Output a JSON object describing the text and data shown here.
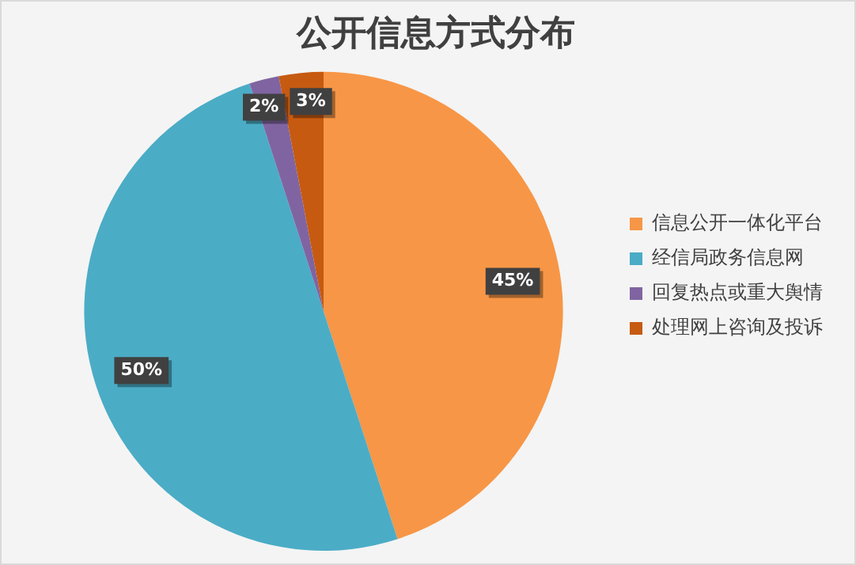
{
  "chart_data": {
    "type": "pie",
    "title": "公开信息方式分布",
    "categories": [
      "信息公开一体化平台",
      "经信局政务信息网",
      "回复热点或重大舆情",
      "处理网上咨询及投诉"
    ],
    "values": [
      45,
      50,
      2,
      3
    ],
    "colors": [
      "#f79646",
      "#4bacc6",
      "#8064a2",
      "#c65a11"
    ],
    "value_labels": [
      "45%",
      "50%",
      "2%",
      "3%"
    ],
    "legend": "right"
  }
}
